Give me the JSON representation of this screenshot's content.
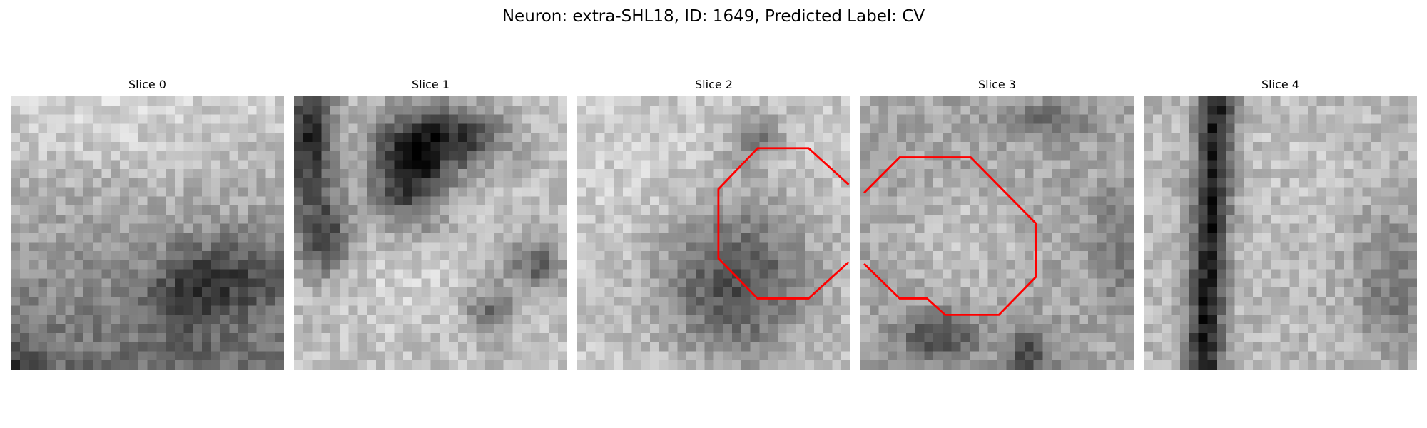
{
  "title": "Neuron: extra-SHL18, ID: 1649, Predicted Label: CV",
  "slices": [
    {
      "label": "Slice 0",
      "contour": false
    },
    {
      "label": "Slice 1",
      "contour": false
    },
    {
      "label": "Slice 2",
      "contour": true
    },
    {
      "label": "Slice 3",
      "contour": true
    },
    {
      "label": "Slice 4",
      "contour": false
    }
  ],
  "grid_size": 30,
  "colors": {
    "contour": "#ff0000",
    "colormap": "grayscale"
  }
}
